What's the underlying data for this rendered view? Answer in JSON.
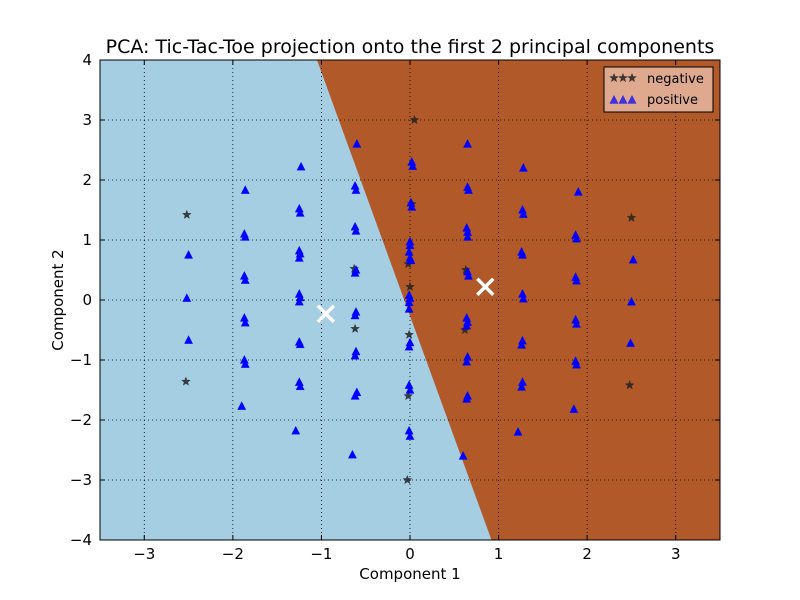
{
  "chart_data": {
    "type": "scatter",
    "title": "PCA: Tic-Tac-Toe projection onto the first 2 principal components",
    "xlabel": "Component 1",
    "ylabel": "Component 2",
    "xlim": [
      -3.5,
      3.5
    ],
    "ylim": [
      -4,
      4
    ],
    "xticks": [
      -3,
      -2,
      -1,
      0,
      1,
      2,
      3
    ],
    "yticks": [
      -4,
      -3,
      -2,
      -1,
      0,
      1,
      2,
      3,
      4
    ],
    "grid": true,
    "legend_position": "top-right",
    "region_colors": {
      "negative_region": "#a6cee3",
      "positive_region": "#b15928"
    },
    "decision_boundary": [
      [
        -1.05,
        4
      ],
      [
        0.92,
        -4
      ]
    ],
    "centroids": [
      [
        -0.95,
        -0.23
      ],
      [
        0.85,
        0.22
      ]
    ],
    "centroid_color": "#ffffff",
    "series": [
      {
        "name": "negative",
        "marker": "star",
        "color": "#222222",
        "points": [
          [
            -2.52,
            1.42
          ],
          [
            -2.53,
            -1.36
          ],
          [
            0.05,
            3.0
          ],
          [
            -0.03,
            -3.0
          ],
          [
            2.5,
            1.37
          ],
          [
            2.48,
            -1.42
          ],
          [
            0.02,
            1.6
          ],
          [
            -0.02,
            0.6
          ],
          [
            0.0,
            0.22
          ],
          [
            -0.01,
            -0.58
          ],
          [
            -0.02,
            -1.6
          ],
          [
            -0.63,
            0.52
          ],
          [
            -0.62,
            -0.48
          ],
          [
            0.63,
            0.5
          ],
          [
            0.62,
            -0.5
          ]
        ]
      },
      {
        "name": "positive",
        "marker": "triangle",
        "color": "#0000ff",
        "points": [
          [
            -2.5,
            0.75
          ],
          [
            -2.52,
            0.03
          ],
          [
            -2.5,
            -0.67
          ],
          [
            -1.86,
            1.83
          ],
          [
            -1.87,
            1.1
          ],
          [
            -1.86,
            1.05
          ],
          [
            -1.87,
            0.4
          ],
          [
            -1.86,
            0.33
          ],
          [
            -1.87,
            -0.3
          ],
          [
            -1.86,
            -0.38
          ],
          [
            -1.87,
            -1.0
          ],
          [
            -1.86,
            -1.07
          ],
          [
            -1.9,
            -1.77
          ],
          [
            -1.23,
            2.22
          ],
          [
            -1.25,
            1.52
          ],
          [
            -1.24,
            1.45
          ],
          [
            -1.25,
            0.82
          ],
          [
            -1.24,
            0.77
          ],
          [
            -1.25,
            0.7
          ],
          [
            -1.25,
            0.1
          ],
          [
            -1.24,
            0.04
          ],
          [
            -1.25,
            -0.03
          ],
          [
            -1.25,
            -0.7
          ],
          [
            -1.24,
            -0.74
          ],
          [
            -1.25,
            -1.37
          ],
          [
            -1.24,
            -1.44
          ],
          [
            -1.29,
            -2.18
          ],
          [
            -0.6,
            2.6
          ],
          [
            -0.62,
            1.9
          ],
          [
            -0.61,
            1.83
          ],
          [
            -0.62,
            1.22
          ],
          [
            -0.61,
            1.15
          ],
          [
            -0.61,
            0.5
          ],
          [
            -0.62,
            0.45
          ],
          [
            -0.61,
            -0.2
          ],
          [
            -0.62,
            -0.26
          ],
          [
            -0.61,
            -0.86
          ],
          [
            -0.62,
            -0.93
          ],
          [
            -0.6,
            -1.54
          ],
          [
            -0.62,
            -1.6
          ],
          [
            -0.65,
            -2.58
          ],
          [
            0.02,
            2.3
          ],
          [
            0.03,
            2.23
          ],
          [
            0.01,
            1.62
          ],
          [
            0.02,
            1.55
          ],
          [
            0.0,
            0.97
          ],
          [
            0.0,
            0.91
          ],
          [
            -0.01,
            0.8
          ],
          [
            0.0,
            0.7
          ],
          [
            0.01,
            0.66
          ],
          [
            -0.01,
            0.08
          ],
          [
            0.0,
            0.03
          ],
          [
            -0.01,
            -0.04
          ],
          [
            -0.01,
            -0.15
          ],
          [
            0.0,
            -0.71
          ],
          [
            -0.01,
            -0.78
          ],
          [
            -0.01,
            -1.42
          ],
          [
            0.0,
            -1.5
          ],
          [
            -0.01,
            -2.18
          ],
          [
            0.0,
            -2.27
          ],
          [
            0.65,
            2.6
          ],
          [
            0.65,
            1.88
          ],
          [
            0.66,
            1.83
          ],
          [
            0.64,
            1.2
          ],
          [
            0.65,
            1.13
          ],
          [
            0.65,
            1.05
          ],
          [
            0.65,
            0.47
          ],
          [
            0.66,
            0.4
          ],
          [
            0.64,
            -0.3
          ],
          [
            0.65,
            -0.37
          ],
          [
            0.64,
            -0.43
          ],
          [
            0.65,
            -0.95
          ],
          [
            0.64,
            -1.03
          ],
          [
            0.65,
            -1.6
          ],
          [
            0.64,
            -1.65
          ],
          [
            0.6,
            -2.6
          ],
          [
            1.28,
            2.2
          ],
          [
            1.27,
            1.5
          ],
          [
            1.28,
            1.43
          ],
          [
            1.26,
            0.8
          ],
          [
            1.27,
            0.75
          ],
          [
            1.27,
            0.1
          ],
          [
            1.28,
            0.02
          ],
          [
            1.27,
            -0.68
          ],
          [
            1.26,
            -0.75
          ],
          [
            1.27,
            -1.37
          ],
          [
            1.26,
            -1.45
          ],
          [
            1.22,
            -2.2
          ],
          [
            1.9,
            1.8
          ],
          [
            1.87,
            1.08
          ],
          [
            1.88,
            1.02
          ],
          [
            1.87,
            0.38
          ],
          [
            1.88,
            0.32
          ],
          [
            1.87,
            -0.33
          ],
          [
            1.88,
            -0.4
          ],
          [
            1.87,
            -1.02
          ],
          [
            1.88,
            -1.08
          ],
          [
            1.85,
            -1.82
          ],
          [
            2.52,
            0.67
          ],
          [
            2.5,
            -0.03
          ],
          [
            2.49,
            -0.72
          ]
        ]
      }
    ]
  }
}
